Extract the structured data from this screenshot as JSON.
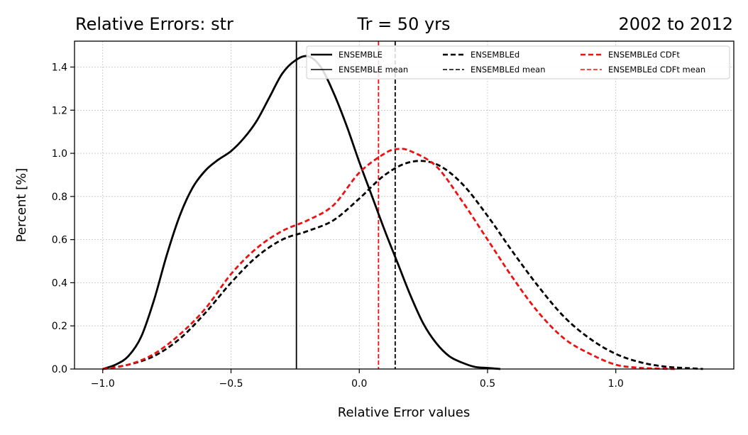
{
  "chart_data": {
    "type": "line",
    "title_left": "Relative Errors: str",
    "title_center": "Tr = 50 yrs",
    "title_right": "2002 to 2012",
    "xlabel": "Relative Error values",
    "ylabel": "Percent [%]",
    "xlim": [
      -1.11,
      1.46
    ],
    "ylim": [
      0,
      1.52
    ],
    "xticks": [
      -1.0,
      -0.5,
      0.0,
      0.5,
      1.0
    ],
    "xtick_labels": [
      "−1.0",
      "−0.5",
      "0.0",
      "0.5",
      "1.0"
    ],
    "yticks": [
      0.0,
      0.2,
      0.4,
      0.6,
      0.8,
      1.0,
      1.2,
      1.4
    ],
    "ytick_labels": [
      "0.0",
      "0.2",
      "0.4",
      "0.6",
      "0.8",
      "1.0",
      "1.2",
      "1.4"
    ],
    "grid": true,
    "legend_position": "top-right",
    "legend_columns": 3,
    "series": [
      {
        "name": "ENSEMBLE",
        "color": "#000000",
        "style": "solid",
        "x": [
          -1.0,
          -0.95,
          -0.9,
          -0.85,
          -0.8,
          -0.75,
          -0.7,
          -0.65,
          -0.6,
          -0.55,
          -0.5,
          -0.45,
          -0.4,
          -0.35,
          -0.3,
          -0.25,
          -0.2,
          -0.15,
          -0.1,
          -0.05,
          0.0,
          0.05,
          0.1,
          0.15,
          0.2,
          0.25,
          0.3,
          0.35,
          0.4,
          0.45,
          0.5,
          0.55
        ],
        "y": [
          0.0,
          0.02,
          0.06,
          0.15,
          0.32,
          0.53,
          0.71,
          0.84,
          0.92,
          0.97,
          1.01,
          1.07,
          1.15,
          1.26,
          1.37,
          1.43,
          1.45,
          1.4,
          1.28,
          1.13,
          0.96,
          0.8,
          0.64,
          0.49,
          0.34,
          0.21,
          0.12,
          0.06,
          0.03,
          0.01,
          0.005,
          0.0
        ]
      },
      {
        "name": "ENSEMBLEd",
        "color": "#000000",
        "style": "dashed",
        "x": [
          -1.0,
          -0.9,
          -0.8,
          -0.7,
          -0.6,
          -0.5,
          -0.4,
          -0.3,
          -0.2,
          -0.1,
          0.0,
          0.1,
          0.2,
          0.3,
          0.4,
          0.5,
          0.6,
          0.7,
          0.8,
          0.9,
          1.0,
          1.1,
          1.2,
          1.3,
          1.34
        ],
        "y": [
          0.0,
          0.02,
          0.06,
          0.14,
          0.26,
          0.4,
          0.52,
          0.6,
          0.64,
          0.69,
          0.79,
          0.9,
          0.96,
          0.95,
          0.86,
          0.71,
          0.54,
          0.38,
          0.24,
          0.14,
          0.07,
          0.03,
          0.01,
          0.003,
          0.0
        ]
      },
      {
        "name": "ENSEMBLEd CDFt",
        "color": "#ee1111",
        "style": "dashed",
        "x": [
          -1.0,
          -0.9,
          -0.8,
          -0.7,
          -0.6,
          -0.5,
          -0.4,
          -0.3,
          -0.2,
          -0.1,
          0.0,
          0.1,
          0.15,
          0.2,
          0.3,
          0.4,
          0.5,
          0.6,
          0.7,
          0.8,
          0.9,
          1.0,
          1.1,
          1.2,
          1.23
        ],
        "y": [
          0.0,
          0.02,
          0.07,
          0.16,
          0.28,
          0.44,
          0.56,
          0.64,
          0.69,
          0.76,
          0.91,
          1.0,
          1.02,
          1.01,
          0.94,
          0.78,
          0.6,
          0.42,
          0.26,
          0.14,
          0.07,
          0.02,
          0.005,
          0.001,
          0.0
        ]
      }
    ],
    "mean_lines": [
      {
        "name": "ENSEMBLE mean",
        "x": -0.245,
        "color": "#000000",
        "style": "solid"
      },
      {
        "name": "ENSEMBLEd mean",
        "x": 0.14,
        "color": "#000000",
        "style": "dashed"
      },
      {
        "name": "ENSEMBLEd CDFt mean",
        "x": 0.075,
        "color": "#ee1111",
        "style": "dashed"
      }
    ]
  }
}
